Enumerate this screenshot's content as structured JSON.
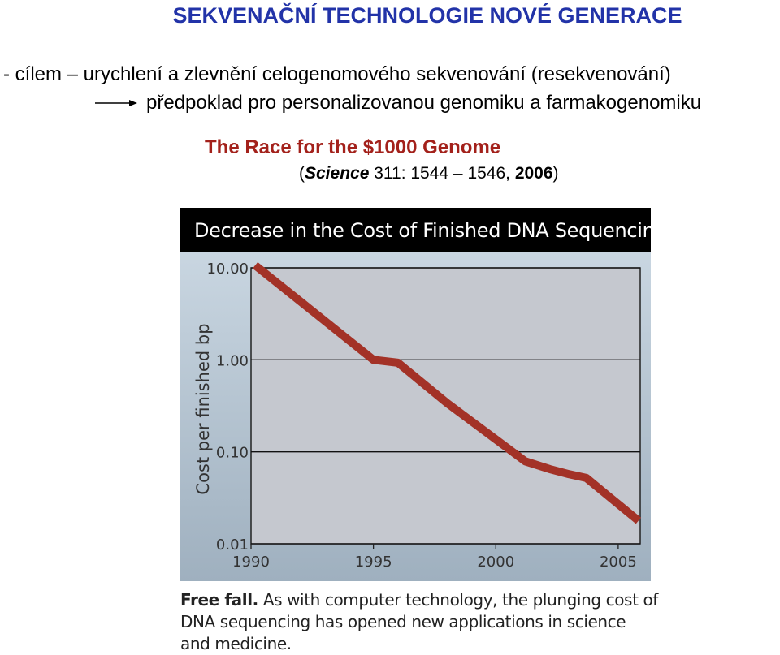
{
  "slide": {
    "title": "SEKVENAČNÍ TECHNOLOGIE NOVÉ GENERACE",
    "bullet": "- cílem – urychlení a zlevnění celogenomového sekvenování (resekvenování)",
    "consequence": "předpoklad pro personalizovanou genomiku a farmakogenomiku",
    "race_title": "The Race for the $1000 Genome",
    "citation": {
      "open": "(",
      "journal": "Science",
      "details": " 311: 1544 – 1546, ",
      "year": "2006",
      "close": ")"
    }
  },
  "figure": {
    "header": "Decrease in the Cost of Finished DNA Sequencing",
    "caption_bold": "Free fall.",
    "caption_text": " As with computer technology, the plunging cost of DNA sequencing has opened new applications in science and medicine."
  },
  "colors": {
    "title": "#2233a8",
    "race_title": "#a3211b",
    "line": "#a33227",
    "plot_bg": "#c5c8cf"
  },
  "chart_data": {
    "type": "line",
    "title": "Decrease in the Cost of Finished DNA Sequencing",
    "xlabel": "",
    "ylabel": "Cost per finished bp",
    "y_scale": "log",
    "xlim": [
      1990,
      2005.9
    ],
    "ylim": [
      0.01,
      10
    ],
    "x_ticks": [
      1990,
      1995,
      2000,
      2005
    ],
    "x_tick_labels": [
      "1990",
      "1995",
      "2000",
      "2005"
    ],
    "y_ticks": [
      10,
      1,
      0.1,
      0.01
    ],
    "y_tick_labels": [
      "10.00",
      "1.00",
      "0.10",
      "0.01"
    ],
    "grid": "horizontal",
    "series": [
      {
        "x": [
          1990.3,
          1995.0,
          1996.0,
          1998.0,
          2001.2,
          2002.2,
          2003.0,
          2003.7,
          2004.6,
          2005.7
        ],
        "values": [
          10.0,
          1.0,
          0.93,
          0.34,
          0.079,
          0.065,
          0.057,
          0.052,
          0.033,
          0.019
        ]
      }
    ]
  }
}
